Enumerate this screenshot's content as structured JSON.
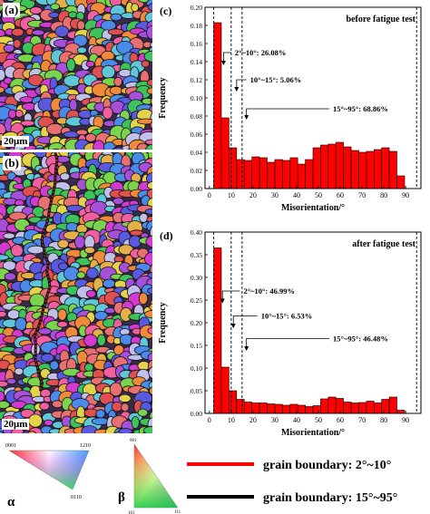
{
  "panels": {
    "a": {
      "letter": "(a)",
      "scale": "20μm"
    },
    "b": {
      "letter": "(b)",
      "scale": "20μm"
    }
  },
  "key": {
    "alpha_label": "α",
    "beta_label": "β",
    "alpha_ticks": [
      "0001",
      "1210",
      "0110"
    ],
    "beta_ticks": [
      "001",
      "101",
      "111"
    ],
    "boundary_low": {
      "label": "grain boundary: 2°~10°",
      "color": "#ff0000"
    },
    "boundary_high": {
      "label": "grain boundary: 15°~95°",
      "color": "#000000"
    }
  },
  "chart_data": [
    {
      "id": "c",
      "panel_label": "(c)",
      "type": "bar",
      "title": "before fatigue test",
      "xlabel": "Misorientation/°",
      "ylabel": "Frequency",
      "xlim": [
        -2,
        97
      ],
      "ylim": [
        0,
        0.2
      ],
      "xticks": [
        0,
        10,
        20,
        30,
        40,
        50,
        60,
        70,
        80,
        90
      ],
      "yticks": [
        0.0,
        0.02,
        0.04,
        0.06,
        0.08,
        0.1,
        0.12,
        0.14,
        0.16,
        0.18,
        0.2
      ],
      "ytick_labels": [
        "0.00",
        "0.02",
        "0.04",
        "0.06",
        "0.08",
        "0.10",
        "0.12",
        "0.14",
        "0.16",
        "0.18",
        "0.20"
      ],
      "bin_width": 3.5,
      "bin_start": 2,
      "values": [
        0.183,
        0.078,
        0.045,
        0.032,
        0.031,
        0.035,
        0.034,
        0.029,
        0.032,
        0.031,
        0.034,
        0.027,
        0.032,
        0.045,
        0.048,
        0.049,
        0.051,
        0.046,
        0.042,
        0.04,
        0.041,
        0.043,
        0.045,
        0.041,
        0.014
      ],
      "bar_color": "#ff0000",
      "dividers": [
        2,
        10,
        15,
        95
      ],
      "annotations": [
        {
          "text": "2°~10°: 26.08%",
          "x": 10,
          "y": 0.15,
          "arrow_to": [
            6.5,
            0.137
          ]
        },
        {
          "text": "10°~15°: 5.06%",
          "x": 17,
          "y": 0.12,
          "arrow_to": [
            12.5,
            0.108
          ]
        },
        {
          "text": "15°~95°: 68.86%",
          "x": 55,
          "y": 0.088,
          "arrow_to": [
            17,
            0.077
          ]
        }
      ]
    },
    {
      "id": "d",
      "panel_label": "(d)",
      "type": "bar",
      "title": "after fatigue test",
      "xlabel": "Misorientation/°",
      "ylabel": "Frequency",
      "xlim": [
        -2,
        97
      ],
      "ylim": [
        0,
        0.4
      ],
      "xticks": [
        0,
        10,
        20,
        30,
        40,
        50,
        60,
        70,
        80,
        90
      ],
      "yticks": [
        0.0,
        0.05,
        0.1,
        0.15,
        0.2,
        0.25,
        0.3,
        0.35,
        0.4
      ],
      "ytick_labels": [
        "0.00",
        "0.05",
        "0.10",
        "0.15",
        "0.20",
        "0.25",
        "0.30",
        "0.35",
        "0.40"
      ],
      "bin_width": 3.5,
      "bin_start": 2,
      "values": [
        0.365,
        0.102,
        0.05,
        0.031,
        0.025,
        0.023,
        0.023,
        0.021,
        0.02,
        0.018,
        0.02,
        0.018,
        0.015,
        0.017,
        0.032,
        0.036,
        0.033,
        0.025,
        0.023,
        0.024,
        0.027,
        0.023,
        0.031,
        0.036,
        0.007
      ],
      "bar_color": "#ff0000",
      "dividers": [
        2,
        10,
        15,
        95
      ],
      "annotations": [
        {
          "text": "2°~10°: 46.99%",
          "x": 14,
          "y": 0.27,
          "arrow_to": [
            6,
            0.245
          ]
        },
        {
          "text": "10°~15°: 6.53%",
          "x": 22,
          "y": 0.215,
          "arrow_to": [
            11,
            0.19
          ]
        },
        {
          "text": "15°~95°: 46.48%",
          "x": 55,
          "y": 0.165,
          "arrow_to": [
            17,
            0.14
          ]
        }
      ]
    }
  ]
}
